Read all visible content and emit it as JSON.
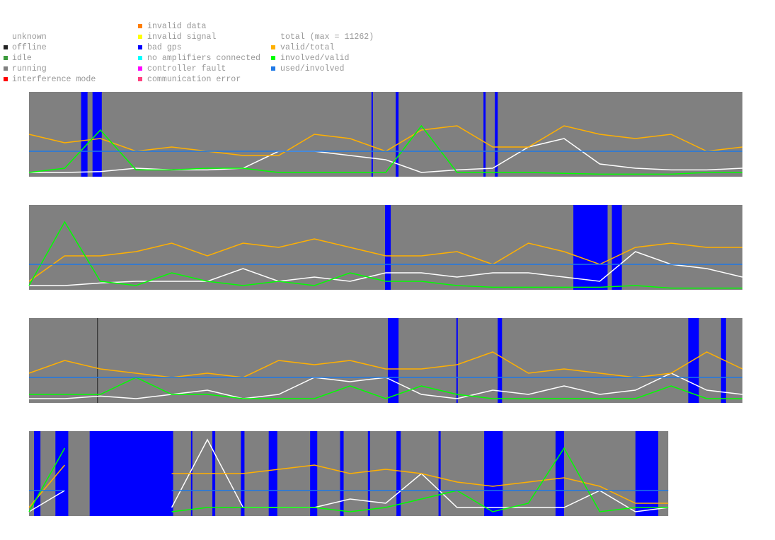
{
  "legend": {
    "status": [
      {
        "name": "unknown",
        "color": "#ffffff"
      },
      {
        "name": "offline",
        "color": "#222222"
      },
      {
        "name": "idle",
        "color": "#3c9a3c"
      },
      {
        "name": "running",
        "color": "#808080"
      },
      {
        "name": "interference mode",
        "color": "#ff0000"
      },
      {
        "name": "invalid data",
        "color": "#ff7f00"
      },
      {
        "name": "invalid signal",
        "color": "#ffff00"
      },
      {
        "name": "bad gps",
        "color": "#0000ff"
      },
      {
        "name": "no amplifiers connected",
        "color": "#00ffff"
      },
      {
        "name": "controller fault",
        "color": "#ff00ff"
      },
      {
        "name": "communication error",
        "color": "#ff4080"
      }
    ],
    "total": "total (max = 11262)",
    "ratios": [
      {
        "name": "valid/total",
        "color": "#ffb000"
      },
      {
        "name": "involved/valid",
        "color": "#00ff00"
      },
      {
        "name": "used/involved",
        "color": "#1e78e6"
      }
    ]
  },
  "chart_data": [
    {
      "type": "line",
      "background": "#808080",
      "band_color": "#0000ff",
      "xlim": [
        0,
        100
      ],
      "ylim": [
        0,
        1
      ],
      "x": [
        0,
        5,
        10,
        15,
        20,
        25,
        30,
        35,
        40,
        45,
        50,
        55,
        60,
        65,
        70,
        75,
        80,
        85,
        90,
        95,
        100
      ],
      "bands": [
        [
          7.3,
          8.2
        ],
        [
          8.9,
          10.2
        ],
        [
          48,
          48.2
        ],
        [
          51.4,
          51.8
        ],
        [
          63.7,
          64
        ],
        [
          65.3,
          65.7
        ]
      ],
      "series": [
        {
          "color": "#ffffff",
          "values": [
            0.05,
            0.05,
            0.06,
            0.1,
            0.08,
            0.08,
            0.1,
            0.3,
            0.3,
            0.25,
            0.2,
            0.05,
            0.08,
            0.1,
            0.35,
            0.45,
            0.15,
            0.1,
            0.08,
            0.08,
            0.1
          ]
        },
        {
          "color": "#ffb000",
          "values": [
            0.5,
            0.4,
            0.45,
            0.3,
            0.35,
            0.3,
            0.25,
            0.25,
            0.5,
            0.45,
            0.3,
            0.55,
            0.6,
            0.35,
            0.35,
            0.6,
            0.5,
            0.45,
            0.5,
            0.3,
            0.35
          ]
        },
        {
          "color": "#00ff00",
          "values": [
            0.05,
            0.1,
            0.55,
            0.08,
            0.08,
            0.1,
            0.1,
            0.05,
            0.05,
            0.05,
            0.05,
            0.6,
            0.05,
            0.05,
            0.05,
            0.04,
            0.03,
            0.03,
            0.03,
            0.05,
            0.05
          ]
        },
        {
          "color": "#1e78e6",
          "values": [
            0.3,
            0.3,
            0.3,
            0.3,
            0.3,
            0.3,
            0.3,
            0.3,
            0.3,
            0.3,
            0.3,
            0.3,
            0.3,
            0.3,
            0.3,
            0.3,
            0.3,
            0.3,
            0.3,
            0.3,
            0.3
          ]
        }
      ]
    },
    {
      "type": "line",
      "background": "#808080",
      "band_color": "#0000ff",
      "xlim": [
        0,
        100
      ],
      "ylim": [
        0,
        1
      ],
      "x": [
        0,
        5,
        10,
        15,
        20,
        25,
        30,
        35,
        40,
        45,
        50,
        55,
        60,
        65,
        70,
        75,
        80,
        85,
        90,
        95,
        100
      ],
      "bands": [
        [
          49.9,
          50.7
        ],
        [
          76.3,
          81.1
        ],
        [
          81.7,
          83.1
        ]
      ],
      "series": [
        {
          "color": "#ffffff",
          "values": [
            0.05,
            0.05,
            0.08,
            0.1,
            0.1,
            0.1,
            0.25,
            0.1,
            0.15,
            0.1,
            0.2,
            0.2,
            0.15,
            0.2,
            0.2,
            0.15,
            0.1,
            0.45,
            0.3,
            0.25,
            0.15
          ]
        },
        {
          "color": "#ffb000",
          "values": [
            0.1,
            0.4,
            0.4,
            0.45,
            0.55,
            0.4,
            0.55,
            0.5,
            0.6,
            0.5,
            0.4,
            0.4,
            0.45,
            0.3,
            0.55,
            0.45,
            0.3,
            0.5,
            0.55,
            0.5,
            0.5
          ]
        },
        {
          "color": "#00ff00",
          "values": [
            0.05,
            0.8,
            0.1,
            0.05,
            0.2,
            0.1,
            0.05,
            0.1,
            0.05,
            0.2,
            0.1,
            0.1,
            0.05,
            0.03,
            0.03,
            0.03,
            0.03,
            0.05,
            0.02,
            0.02,
            0.02
          ]
        },
        {
          "color": "#1e78e6",
          "values": [
            0.3,
            0.3,
            0.3,
            0.3,
            0.3,
            0.3,
            0.3,
            0.3,
            0.3,
            0.3,
            0.3,
            0.3,
            0.3,
            0.3,
            0.3,
            0.3,
            0.3,
            0.3,
            0.3,
            0.3,
            0.3
          ]
        }
      ]
    },
    {
      "type": "line",
      "background": "#808080",
      "band_color": "#0000ff",
      "offline_color": "#222222",
      "xlim": [
        0,
        100
      ],
      "ylim": [
        0,
        1
      ],
      "x": [
        0,
        5,
        10,
        15,
        20,
        25,
        30,
        35,
        40,
        45,
        50,
        55,
        60,
        65,
        70,
        75,
        80,
        85,
        90,
        95,
        100
      ],
      "bands": [
        [
          50.3,
          51.8
        ],
        [
          59.9,
          60.1
        ],
        [
          65.7,
          66.3
        ],
        [
          92.4,
          93.9
        ],
        [
          97,
          97.7
        ]
      ],
      "offline": [
        [
          9.55,
          9.65
        ]
      ],
      "series": [
        {
          "color": "#ffffff",
          "values": [
            0.05,
            0.05,
            0.08,
            0.05,
            0.1,
            0.15,
            0.05,
            0.1,
            0.3,
            0.25,
            0.3,
            0.1,
            0.05,
            0.15,
            0.1,
            0.2,
            0.1,
            0.15,
            0.35,
            0.15,
            0.1
          ]
        },
        {
          "color": "#ffb000",
          "values": [
            0.35,
            0.5,
            0.4,
            0.35,
            0.3,
            0.35,
            0.3,
            0.5,
            0.45,
            0.5,
            0.4,
            0.4,
            0.45,
            0.6,
            0.35,
            0.4,
            0.35,
            0.3,
            0.35,
            0.6,
            0.4
          ]
        },
        {
          "color": "#00ff00",
          "values": [
            0.1,
            0.1,
            0.1,
            0.3,
            0.1,
            0.1,
            0.05,
            0.05,
            0.05,
            0.2,
            0.05,
            0.2,
            0.1,
            0.05,
            0.05,
            0.05,
            0.05,
            0.05,
            0.2,
            0.05,
            0.05
          ]
        },
        {
          "color": "#1e78e6",
          "values": [
            0.3,
            0.3,
            0.3,
            0.3,
            0.3,
            0.3,
            0.3,
            0.3,
            0.3,
            0.3,
            0.3,
            0.3,
            0.3,
            0.3,
            0.3,
            0.3,
            0.3,
            0.3,
            0.3,
            0.3,
            0.3
          ]
        }
      ]
    },
    {
      "type": "line",
      "background": "#808080",
      "band_color": "#0000ff",
      "xlim": [
        0,
        100
      ],
      "ylim": [
        0,
        1
      ],
      "x": [
        0,
        5,
        10,
        15,
        20,
        25,
        30,
        35,
        40,
        45,
        50,
        55,
        60,
        65,
        70,
        75,
        80,
        85,
        89.6
      ],
      "bands": [
        [
          0.7,
          1.6
        ],
        [
          3.7,
          5.5
        ],
        [
          8.5,
          20.2
        ],
        [
          22.7,
          22.9
        ],
        [
          25.7,
          26.1
        ],
        [
          29.7,
          30.2
        ],
        [
          33.6,
          34.8
        ],
        [
          39.4,
          40.4
        ],
        [
          43.6,
          44.1
        ],
        [
          47.5,
          47.8
        ],
        [
          51.5,
          52.1
        ],
        [
          57.4,
          57.7
        ],
        [
          63.8,
          66.4
        ],
        [
          73.8,
          75
        ],
        [
          85,
          88.2
        ]
      ],
      "series": [
        {
          "color": "#ffffff",
          "values": [
            0.05,
            0.3,
            null,
            null,
            0.1,
            0.9,
            0.1,
            0.1,
            0.1,
            0.2,
            0.15,
            0.5,
            0.1,
            0.1,
            0.1,
            0.1,
            0.3,
            0.05,
            0.1
          ]
        },
        {
          "color": "#ffb000",
          "values": [
            0.1,
            0.6,
            null,
            null,
            0.5,
            0.5,
            0.5,
            0.55,
            0.6,
            0.5,
            0.55,
            0.5,
            0.4,
            0.35,
            0.4,
            0.45,
            0.35,
            0.15,
            0.15
          ]
        },
        {
          "color": "#00ff00",
          "values": [
            0.05,
            0.8,
            null,
            null,
            0.05,
            0.1,
            0.1,
            0.1,
            0.1,
            0.05,
            0.1,
            0.2,
            0.3,
            0.05,
            0.15,
            0.8,
            0.05,
            0.1,
            0.1
          ]
        },
        {
          "color": "#1e78e6",
          "values": [
            0.3,
            0.3,
            null,
            null,
            0.3,
            0.3,
            0.3,
            0.3,
            0.3,
            0.3,
            0.3,
            0.3,
            0.3,
            0.3,
            0.3,
            0.3,
            0.3,
            0.3,
            0.3
          ]
        }
      ]
    }
  ]
}
